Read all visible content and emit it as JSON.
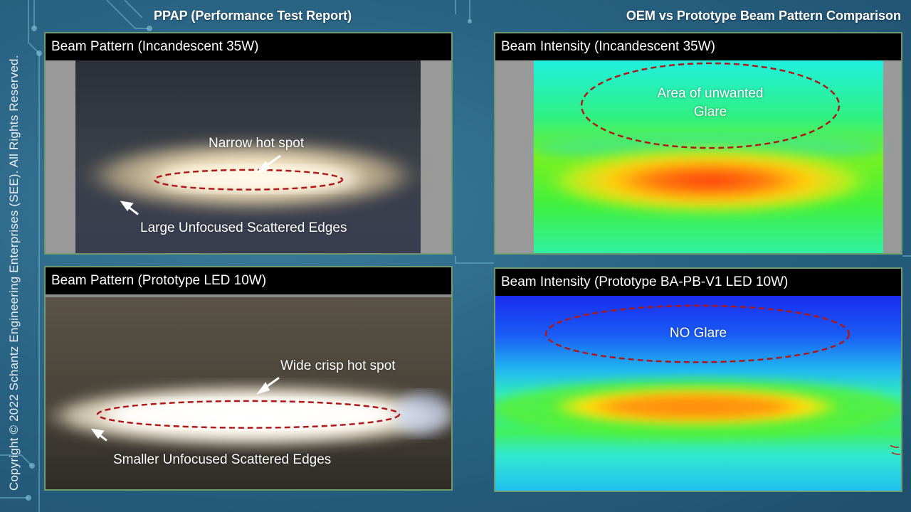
{
  "header": {
    "left_title": "PPAP (Performance Test Report)",
    "right_title": "OEM vs Prototype Beam Pattern Comparison"
  },
  "copyright": "Copyright © 2022 Schantz Engineering Enterprises (SEE).  All Rights Reserved.",
  "panels": {
    "oem_pattern": {
      "title": "Beam Pattern  (Incandescent 35W)",
      "hotspot_label": "Narrow hot spot",
      "edges_label": "Large Unfocused Scattered Edges"
    },
    "oem_intensity": {
      "title": "Beam Intensity (Incandescent 35W)",
      "glare_label_line1": "Area of unwanted",
      "glare_label_line2": "Glare"
    },
    "proto_pattern": {
      "title": "Beam Pattern  (Prototype LED 10W)",
      "hotspot_label": "Wide crisp hot spot",
      "edges_label": "Smaller Unfocused Scattered Edges"
    },
    "proto_intensity": {
      "title": "Beam Intensity (Prototype BA-PB-V1 LED 10W)",
      "glare_label": "NO Glare"
    }
  },
  "colors": {
    "annotation_dash": "#b01818",
    "panel_border": "#6f9a6a",
    "title_bar": "#000000"
  }
}
